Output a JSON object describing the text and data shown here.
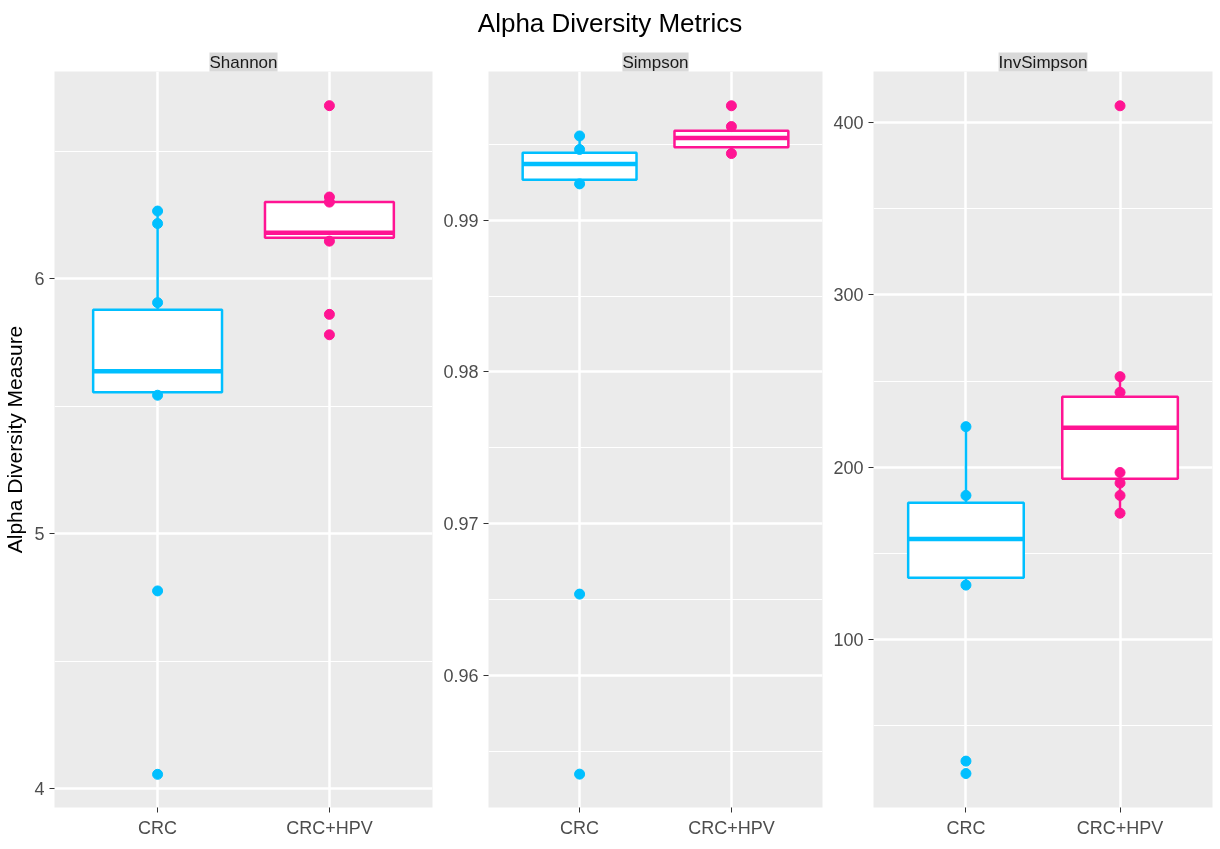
{
  "chart_data": [
    {
      "type": "box",
      "subtitle": "Shannon",
      "ylabel": "Alpha Diversity Measure",
      "categories": [
        "CRC",
        "CRC+HPV"
      ],
      "ylim": [
        3.927,
        6.812
      ],
      "yticks": [
        4,
        5,
        6
      ],
      "grid": true,
      "series": [
        {
          "type": "box",
          "colors": [
            "#00bfff",
            "#ff1493"
          ],
          "boxes": [
            {
              "low": 5.543,
              "q1": 5.555,
              "median": 5.637,
              "q3": 5.878,
              "high": 6.265
            },
            {
              "low": 6.147,
              "q1": 6.16,
              "median": 6.18,
              "q3": 6.3,
              "high": 6.32
            }
          ]
        },
        {
          "type": "scatter",
          "x": [
            "CRC",
            "CRC",
            "CRC",
            "CRC",
            "CRC",
            "CRC",
            "CRC+HPV",
            "CRC+HPV",
            "CRC+HPV",
            "CRC+HPV",
            "CRC+HPV",
            "CRC+HPV"
          ],
          "values": [
            6.265,
            6.216,
            5.906,
            5.543,
            4.776,
            4.057,
            6.678,
            6.32,
            6.3,
            6.147,
            5.86,
            5.78
          ],
          "colors": [
            "#00bfff",
            "#00bfff",
            "#00bfff",
            "#00bfff",
            "#00bfff",
            "#00bfff",
            "#ff1493",
            "#ff1493",
            "#ff1493",
            "#ff1493",
            "#ff1493",
            "#ff1493"
          ]
        }
      ]
    },
    {
      "type": "box",
      "title": "Alpha Diversity Metrics",
      "subtitle": "Simpson",
      "categories": [
        "CRC",
        "CRC+HPV"
      ],
      "ylim": [
        0.95128,
        0.99981
      ],
      "yticks": [
        0.96,
        0.97,
        0.98,
        0.99
      ],
      "grid": true,
      "series": [
        {
          "type": "box",
          "colors": [
            "#00bfff",
            "#ff1493"
          ],
          "boxes": [
            {
              "low": 0.9924,
              "q1": 0.99268,
              "median": 0.99371,
              "q3": 0.99446,
              "high": 0.99556
            },
            {
              "low": 0.9944,
              "q1": 0.99481,
              "median": 0.99542,
              "q3": 0.99591,
              "high": 0.99618
            }
          ]
        },
        {
          "type": "scatter",
          "x": [
            "CRC",
            "CRC",
            "CRC",
            "CRC",
            "CRC",
            "CRC+HPV",
            "CRC+HPV",
            "CRC+HPV",
            "CRC+HPV"
          ],
          "values": [
            0.99556,
            0.99467,
            0.9924,
            0.96535,
            0.95348,
            0.99755,
            0.99618,
            null,
            0.9944
          ],
          "colors": [
            "#00bfff",
            "#00bfff",
            "#00bfff",
            "#00bfff",
            "#00bfff",
            "#ff1493",
            "#ff1493",
            "#ff1493",
            "#ff1493"
          ]
        }
      ]
    },
    {
      "type": "box",
      "subtitle": "InvSimpson",
      "categories": [
        "CRC",
        "CRC+HPV"
      ],
      "ylim": [
        2.7,
        429.6
      ],
      "yticks": [
        100,
        200,
        300,
        400
      ],
      "grid": true,
      "series": [
        {
          "type": "box",
          "colors": [
            "#00bfff",
            "#ff1493"
          ],
          "boxes": [
            {
              "low": 131.7,
              "q1": 136,
              "median": 158.4,
              "q3": 179.5,
              "high": 223.6
            },
            {
              "low": 173.4,
              "q1": 193.4,
              "median": 222.9,
              "q3": 241,
              "high": 252.6
            }
          ]
        },
        {
          "type": "scatter",
          "x": [
            "CRC",
            "CRC",
            "CRC",
            "CRC",
            "CRC",
            "CRC+HPV",
            "CRC+HPV",
            "CRC+HPV",
            "CRC+HPV",
            "CRC+HPV",
            "CRC+HPV",
            "CRC+HPV"
          ],
          "values": [
            223.6,
            183.7,
            131.7,
            29.6,
            22.4,
            409.7,
            252.6,
            243.5,
            197,
            190.9,
            183.7,
            173.4
          ],
          "colors": [
            "#00bfff",
            "#00bfff",
            "#00bfff",
            "#00bfff",
            "#00bfff",
            "#ff1493",
            "#ff1493",
            "#ff1493",
            "#ff1493",
            "#ff1493",
            "#ff1493",
            "#ff1493"
          ]
        }
      ]
    }
  ]
}
